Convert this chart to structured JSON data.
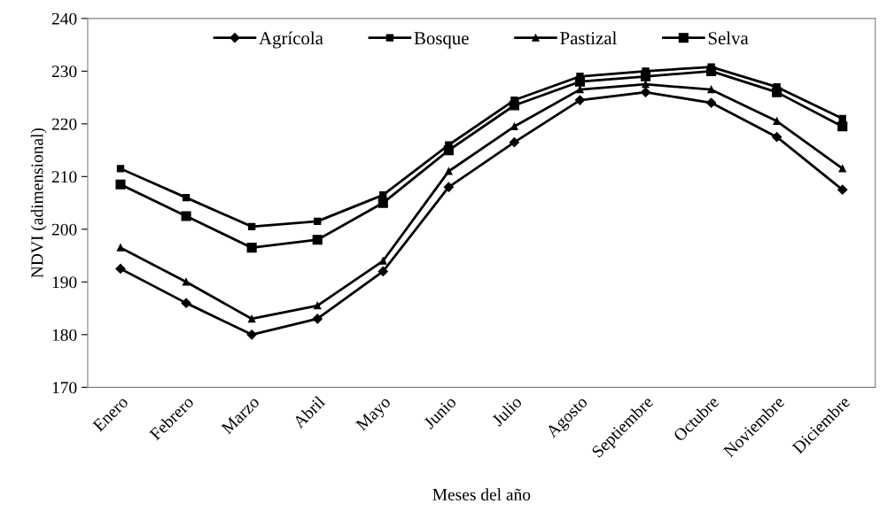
{
  "chart_data": {
    "type": "line",
    "xlabel": "Meses del año",
    "ylabel": "NDVI (adimensional)",
    "categories": [
      "Enero",
      "Febrero",
      "Marzo",
      "Abril",
      "Mayo",
      "Junio",
      "Julio",
      "Agosto",
      "Septiembre",
      "Octubre",
      "Noviembre",
      "Diciembre"
    ],
    "series": [
      {
        "name": "Agrícola",
        "color": "#000000",
        "marker": "diamond",
        "values": [
          192.5,
          186,
          180,
          183,
          192,
          208,
          216.5,
          224.5,
          226,
          224,
          217.5,
          207.5
        ]
      },
      {
        "name": "Bosque",
        "color": "#000000",
        "marker": "square",
        "values": [
          211.5,
          206,
          200.5,
          201.5,
          206.5,
          216,
          224.5,
          229,
          230,
          230.8,
          227,
          221
        ]
      },
      {
        "name": "Pastizal",
        "color": "#000000",
        "marker": "triangle",
        "values": [
          196.5,
          190,
          183,
          185.5,
          194,
          211,
          219.5,
          226.5,
          227.5,
          226.5,
          220.5,
          211.5
        ]
      },
      {
        "name": "Selva",
        "color": "#000000",
        "marker": "square",
        "values": [
          208.5,
          202.5,
          196.5,
          198,
          205,
          215,
          223.5,
          228,
          229,
          230,
          226,
          219.5
        ]
      }
    ],
    "ylim": [
      170,
      240
    ],
    "yticks": [
      170,
      180,
      190,
      200,
      210,
      220,
      230,
      240
    ],
    "grid": false,
    "legend": "top",
    "line_style": "solid"
  }
}
